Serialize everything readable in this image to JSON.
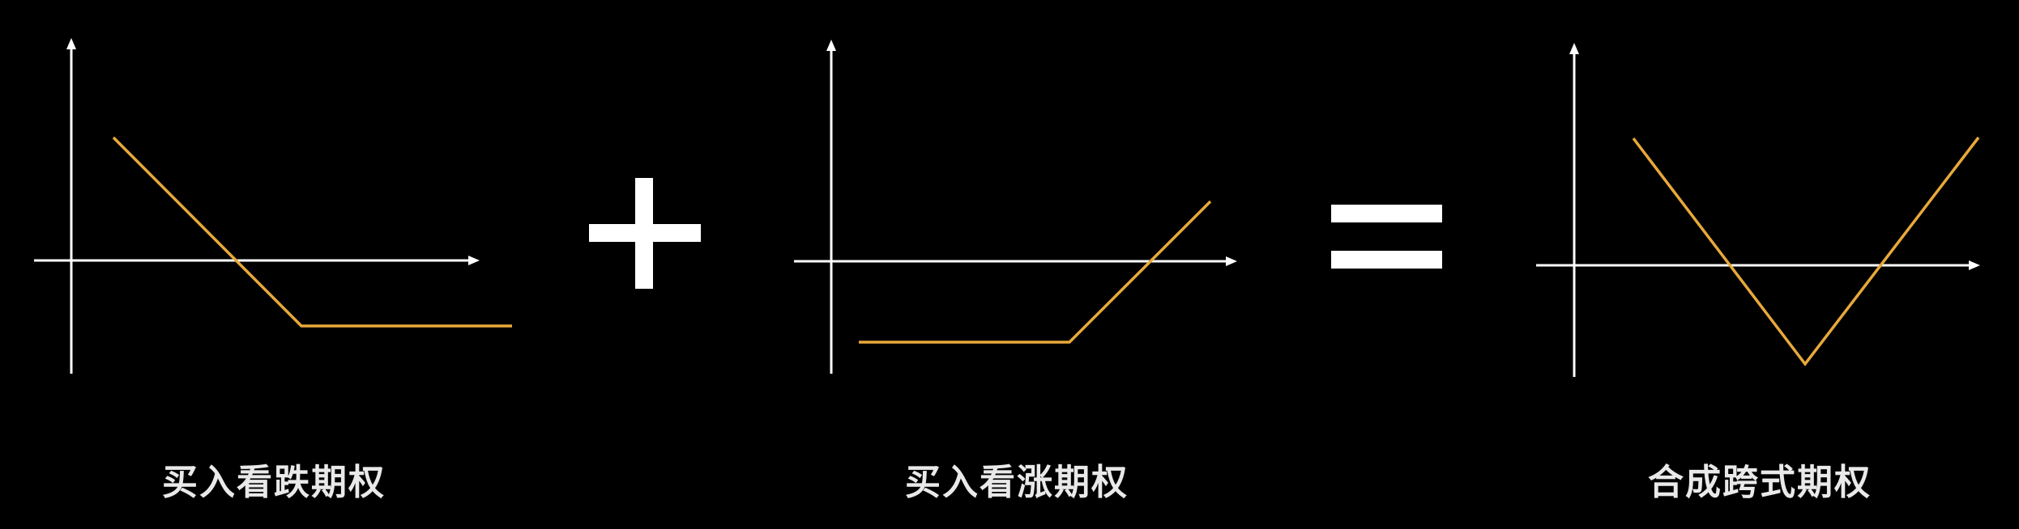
{
  "colors": {
    "background": "#000000",
    "axis": "#ffffff",
    "payoff": "#e8a93a",
    "caption": "#e9e9e9",
    "operator": "#ffffff"
  },
  "operators": {
    "plus": "plus-icon",
    "equals": "equals-icon"
  },
  "panels": [
    {
      "id": "long-put",
      "caption": "买入看跌期权",
      "payoff_shape": "long-put"
    },
    {
      "id": "long-call",
      "caption": "买入看涨期权",
      "payoff_shape": "long-call"
    },
    {
      "id": "long-straddle",
      "caption": "合成跨式期权",
      "payoff_shape": "long-straddle"
    }
  ]
}
